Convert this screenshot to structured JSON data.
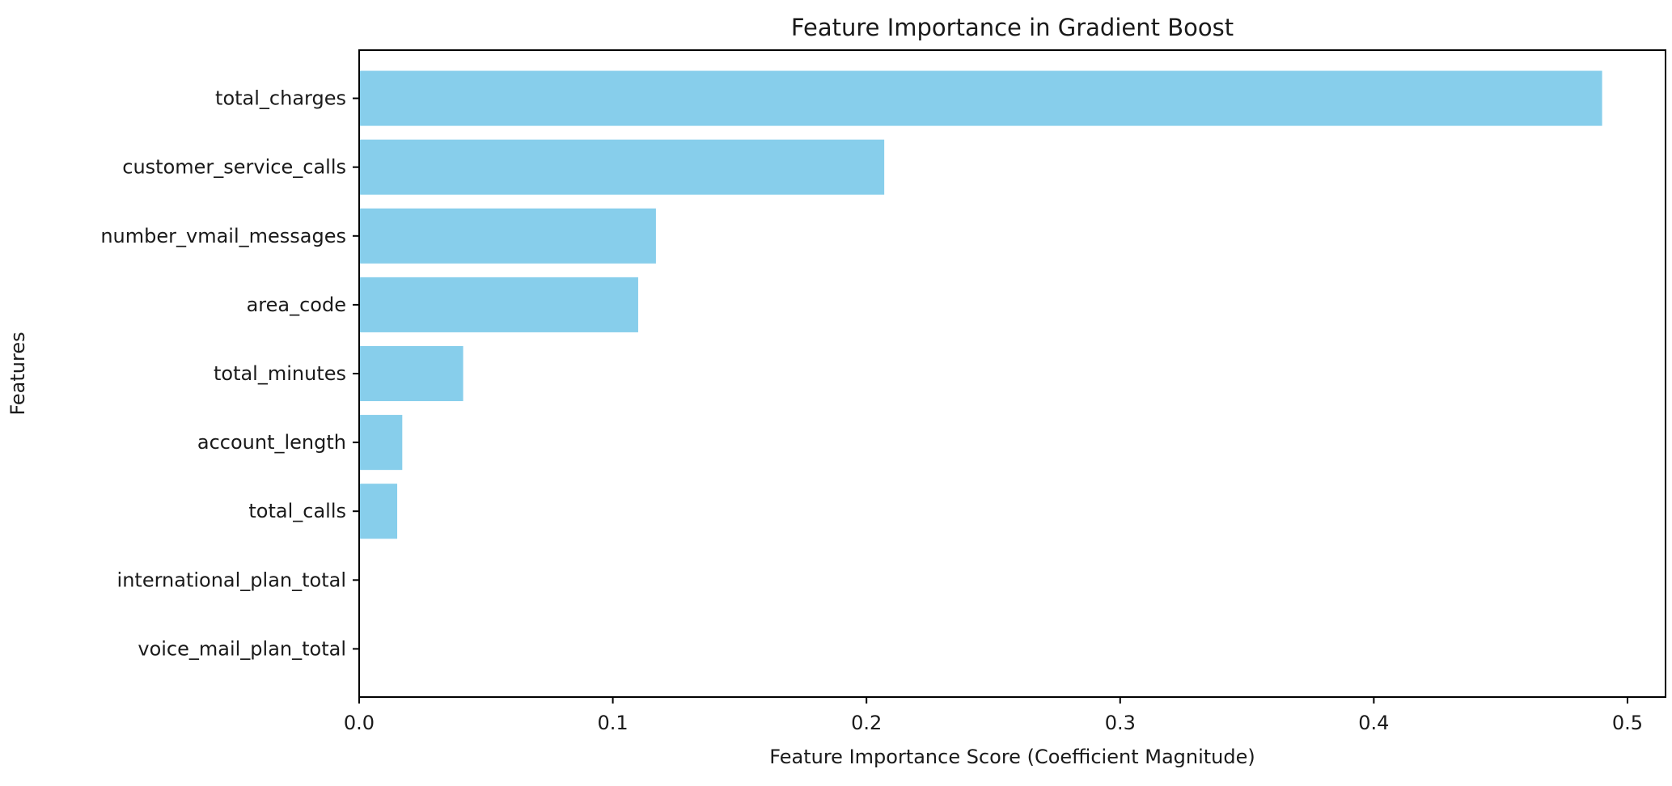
{
  "chart_data": {
    "type": "bar",
    "orientation": "horizontal",
    "title": "Feature Importance in Gradient Boost",
    "xlabel": "Feature Importance Score (Coefficient Magnitude)",
    "ylabel": "Features",
    "categories": [
      "total_charges",
      "customer_service_calls",
      "number_vmail_messages",
      "area_code",
      "total_minutes",
      "account_length",
      "total_calls",
      "international_plan_total",
      "voice_mail_plan_total"
    ],
    "values": [
      0.49,
      0.207,
      0.117,
      0.11,
      0.041,
      0.017,
      0.015,
      0.0,
      0.0
    ],
    "xlim": [
      0,
      0.515
    ],
    "xticks": [
      0.0,
      0.1,
      0.2,
      0.3,
      0.4,
      0.5
    ],
    "xtick_labels": [
      "0.0",
      "0.1",
      "0.2",
      "0.3",
      "0.4",
      "0.5"
    ],
    "bar_color": "#87CEEB",
    "grid": false,
    "legend": "none"
  }
}
